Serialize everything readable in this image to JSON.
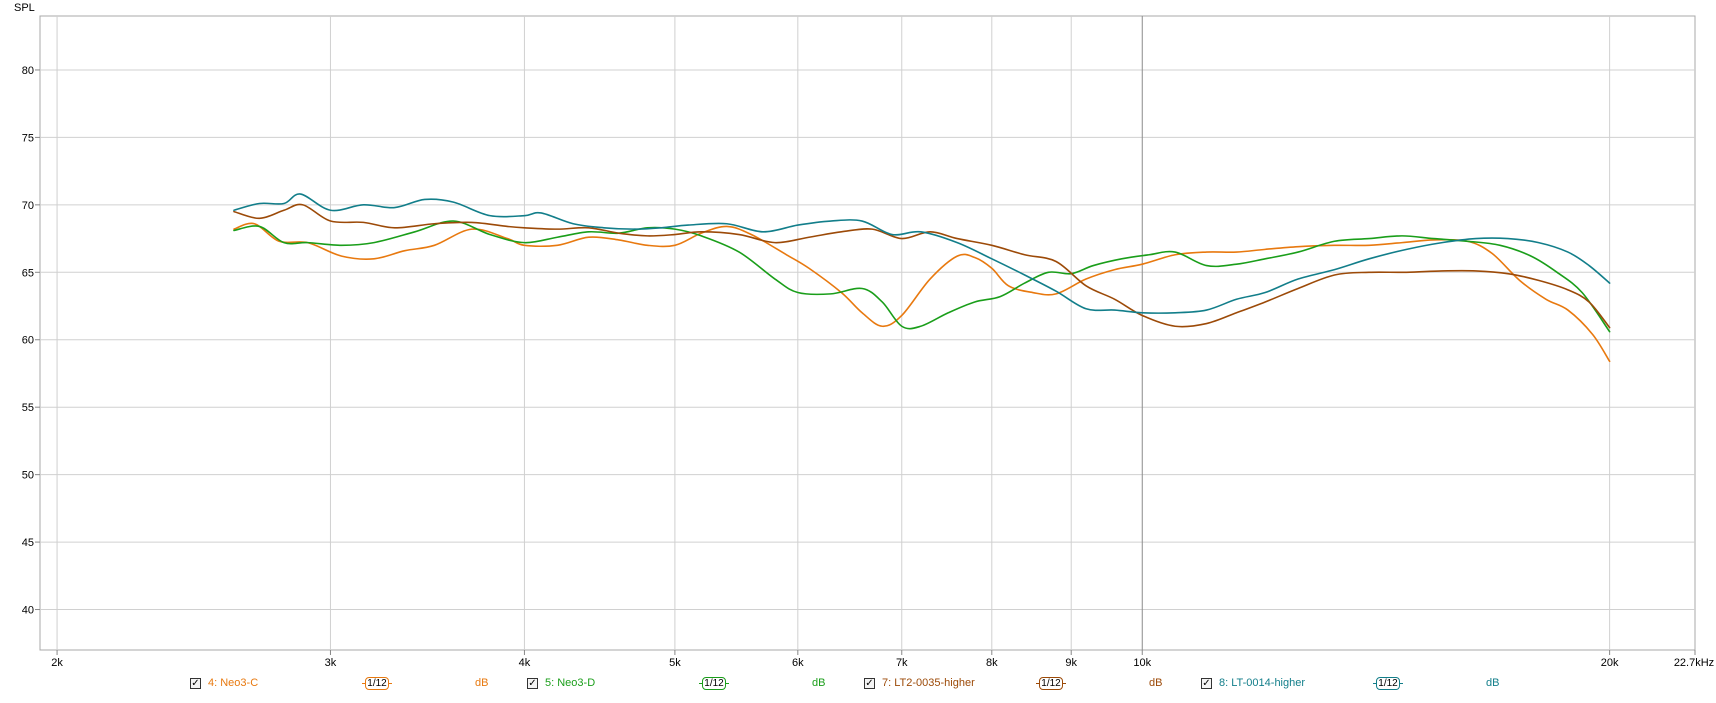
{
  "chart_data": {
    "type": "line",
    "ylabel": "SPL",
    "xscale": "log",
    "xlim": [
      1950,
      22700
    ],
    "ylim": [
      37,
      84
    ],
    "grid": true,
    "yticks": [
      40,
      45,
      50,
      55,
      60,
      65,
      70,
      75,
      80
    ],
    "xticks": [
      {
        "v": 2000,
        "label": "2k"
      },
      {
        "v": 3000,
        "label": "3k"
      },
      {
        "v": 4000,
        "label": "4k"
      },
      {
        "v": 5000,
        "label": "5k"
      },
      {
        "v": 6000,
        "label": "6k"
      },
      {
        "v": 7000,
        "label": "7k"
      },
      {
        "v": 8000,
        "label": "8k"
      },
      {
        "v": 9000,
        "label": "9k"
      },
      {
        "v": 10000,
        "label": "10k"
      },
      {
        "v": 20000,
        "label": "20k"
      },
      {
        "v": 22700,
        "label": "22.7kHz"
      }
    ],
    "series": [
      {
        "name": "4: Neo3-C",
        "color": "#e8790f",
        "points": [
          [
            2600,
            68.2
          ],
          [
            2680,
            68.6
          ],
          [
            2780,
            67.3
          ],
          [
            2900,
            67.2
          ],
          [
            3050,
            66.2
          ],
          [
            3200,
            66.0
          ],
          [
            3350,
            66.6
          ],
          [
            3500,
            67.0
          ],
          [
            3700,
            68.2
          ],
          [
            3900,
            67.5
          ],
          [
            4000,
            67.0
          ],
          [
            4200,
            67.0
          ],
          [
            4400,
            67.6
          ],
          [
            4600,
            67.4
          ],
          [
            4800,
            67.0
          ],
          [
            5000,
            67.0
          ],
          [
            5200,
            67.9
          ],
          [
            5400,
            68.4
          ],
          [
            5600,
            67.8
          ],
          [
            5900,
            66.3
          ],
          [
            6100,
            65.3
          ],
          [
            6400,
            63.5
          ],
          [
            6600,
            62.0
          ],
          [
            6800,
            61.0
          ],
          [
            7000,
            61.8
          ],
          [
            7300,
            64.5
          ],
          [
            7600,
            66.2
          ],
          [
            7800,
            66.1
          ],
          [
            8000,
            65.3
          ],
          [
            8200,
            64.0
          ],
          [
            8500,
            63.5
          ],
          [
            8800,
            63.4
          ],
          [
            9200,
            64.5
          ],
          [
            9600,
            65.2
          ],
          [
            10000,
            65.6
          ],
          [
            10500,
            66.3
          ],
          [
            11000,
            66.5
          ],
          [
            11500,
            66.5
          ],
          [
            12000,
            66.7
          ],
          [
            12600,
            66.9
          ],
          [
            13300,
            67.0
          ],
          [
            14000,
            67.0
          ],
          [
            14700,
            67.2
          ],
          [
            15400,
            67.4
          ],
          [
            16200,
            67.3
          ],
          [
            16800,
            66.4
          ],
          [
            17500,
            64.4
          ],
          [
            18200,
            63.0
          ],
          [
            18800,
            62.2
          ],
          [
            19500,
            60.4
          ],
          [
            20000,
            58.4
          ]
        ]
      },
      {
        "name": "5: Neo3-D",
        "color": "#1a9e1a",
        "points": [
          [
            2600,
            68.1
          ],
          [
            2700,
            68.4
          ],
          [
            2800,
            67.2
          ],
          [
            2900,
            67.2
          ],
          [
            3050,
            67.0
          ],
          [
            3200,
            67.2
          ],
          [
            3400,
            68.0
          ],
          [
            3600,
            68.8
          ],
          [
            3800,
            67.8
          ],
          [
            4000,
            67.2
          ],
          [
            4200,
            67.6
          ],
          [
            4400,
            68.0
          ],
          [
            4600,
            67.9
          ],
          [
            4800,
            68.3
          ],
          [
            5000,
            68.2
          ],
          [
            5200,
            67.7
          ],
          [
            5500,
            66.5
          ],
          [
            5800,
            64.5
          ],
          [
            6000,
            63.5
          ],
          [
            6300,
            63.4
          ],
          [
            6600,
            63.8
          ],
          [
            6800,
            62.8
          ],
          [
            7000,
            61.0
          ],
          [
            7200,
            61.0
          ],
          [
            7500,
            62.0
          ],
          [
            7800,
            62.8
          ],
          [
            8100,
            63.2
          ],
          [
            8400,
            64.2
          ],
          [
            8700,
            65.0
          ],
          [
            9000,
            64.9
          ],
          [
            9300,
            65.5
          ],
          [
            9700,
            66.0
          ],
          [
            10100,
            66.3
          ],
          [
            10500,
            66.5
          ],
          [
            11000,
            65.5
          ],
          [
            11500,
            65.6
          ],
          [
            12000,
            66.0
          ],
          [
            12600,
            66.5
          ],
          [
            13300,
            67.3
          ],
          [
            14000,
            67.5
          ],
          [
            14700,
            67.7
          ],
          [
            15400,
            67.5
          ],
          [
            16200,
            67.3
          ],
          [
            17000,
            67.0
          ],
          [
            17800,
            66.2
          ],
          [
            18500,
            65.0
          ],
          [
            19200,
            63.5
          ],
          [
            20000,
            60.6
          ]
        ]
      },
      {
        "name": "7: LT2-0035-higher",
        "color": "#9c4a08",
        "points": [
          [
            2600,
            69.5
          ],
          [
            2700,
            69.0
          ],
          [
            2800,
            69.6
          ],
          [
            2880,
            70.0
          ],
          [
            3000,
            68.8
          ],
          [
            3150,
            68.7
          ],
          [
            3300,
            68.3
          ],
          [
            3500,
            68.6
          ],
          [
            3700,
            68.7
          ],
          [
            3900,
            68.4
          ],
          [
            4000,
            68.3
          ],
          [
            4200,
            68.2
          ],
          [
            4400,
            68.3
          ],
          [
            4600,
            67.9
          ],
          [
            4800,
            67.7
          ],
          [
            5000,
            67.8
          ],
          [
            5200,
            68.0
          ],
          [
            5500,
            67.8
          ],
          [
            5800,
            67.2
          ],
          [
            6100,
            67.6
          ],
          [
            6400,
            68.0
          ],
          [
            6700,
            68.2
          ],
          [
            7000,
            67.5
          ],
          [
            7300,
            68.0
          ],
          [
            7600,
            67.5
          ],
          [
            8000,
            67.0
          ],
          [
            8400,
            66.3
          ],
          [
            8800,
            65.8
          ],
          [
            9200,
            64.0
          ],
          [
            9600,
            63.0
          ],
          [
            10000,
            61.8
          ],
          [
            10500,
            61.0
          ],
          [
            11000,
            61.2
          ],
          [
            11500,
            62.0
          ],
          [
            12000,
            62.8
          ],
          [
            12600,
            63.8
          ],
          [
            13300,
            64.8
          ],
          [
            14000,
            65.0
          ],
          [
            14800,
            65.0
          ],
          [
            15600,
            65.1
          ],
          [
            16400,
            65.1
          ],
          [
            17200,
            64.9
          ],
          [
            18000,
            64.4
          ],
          [
            18800,
            63.7
          ],
          [
            19400,
            62.8
          ],
          [
            20000,
            60.9
          ]
        ]
      },
      {
        "name": "8: LT-0014-higher",
        "color": "#127e8a",
        "points": [
          [
            2600,
            69.6
          ],
          [
            2700,
            70.1
          ],
          [
            2800,
            70.1
          ],
          [
            2870,
            70.8
          ],
          [
            3000,
            69.6
          ],
          [
            3150,
            70.0
          ],
          [
            3300,
            69.8
          ],
          [
            3450,
            70.4
          ],
          [
            3600,
            70.2
          ],
          [
            3800,
            69.2
          ],
          [
            4000,
            69.2
          ],
          [
            4100,
            69.4
          ],
          [
            4300,
            68.6
          ],
          [
            4500,
            68.3
          ],
          [
            4700,
            68.2
          ],
          [
            4900,
            68.3
          ],
          [
            5100,
            68.5
          ],
          [
            5400,
            68.6
          ],
          [
            5700,
            68.0
          ],
          [
            6000,
            68.5
          ],
          [
            6300,
            68.8
          ],
          [
            6600,
            68.8
          ],
          [
            6900,
            67.8
          ],
          [
            7200,
            68.0
          ],
          [
            7600,
            67.2
          ],
          [
            8000,
            66.0
          ],
          [
            8400,
            64.8
          ],
          [
            8800,
            63.6
          ],
          [
            9200,
            62.3
          ],
          [
            9600,
            62.2
          ],
          [
            10000,
            62.0
          ],
          [
            10500,
            62.0
          ],
          [
            11000,
            62.2
          ],
          [
            11500,
            63.0
          ],
          [
            12000,
            63.5
          ],
          [
            12600,
            64.5
          ],
          [
            13300,
            65.2
          ],
          [
            14000,
            66.0
          ],
          [
            14800,
            66.7
          ],
          [
            15600,
            67.2
          ],
          [
            16400,
            67.5
          ],
          [
            17200,
            67.5
          ],
          [
            18000,
            67.2
          ],
          [
            18800,
            66.5
          ],
          [
            19400,
            65.5
          ],
          [
            20000,
            64.2
          ]
        ]
      }
    ]
  },
  "legend": [
    {
      "checked": "✓",
      "name": "4: Neo3-C",
      "smoothing": "1/12",
      "unit": "dB",
      "color": "#e8790f"
    },
    {
      "checked": "✓",
      "name": "5: Neo3-D",
      "smoothing": "1/12",
      "unit": "dB",
      "color": "#1a9e1a"
    },
    {
      "checked": "✓",
      "name": "7: LT2-0035-higher",
      "smoothing": "1/12",
      "unit": "dB",
      "color": "#9c4a08"
    },
    {
      "checked": "✓",
      "name": "8: LT-0014-higher",
      "smoothing": "1/12",
      "unit": "dB",
      "color": "#127e8a"
    }
  ]
}
